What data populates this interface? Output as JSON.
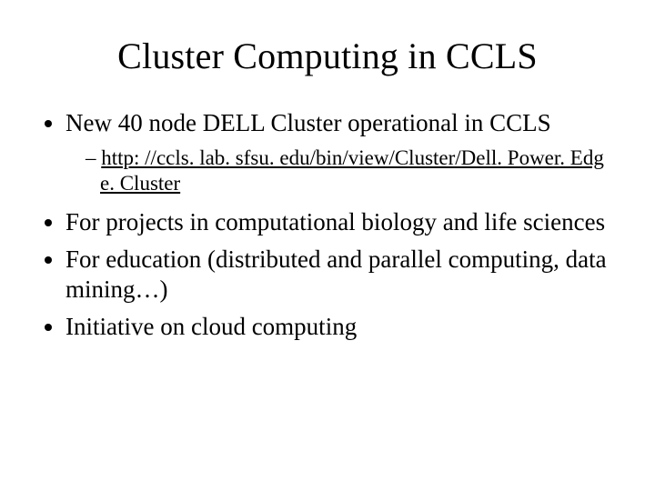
{
  "title": "Cluster Computing in CCLS",
  "bullets": {
    "b1": "New 40 node DELL Cluster operational in CCLS",
    "b1_sub": "http: //ccls. lab. sfsu. edu/bin/view/Cluster/Dell. Power. Edg e. Cluster",
    "b2": "For projects in computational biology and life sciences",
    "b3": "For education (distributed and parallel computing, data mining…)",
    "b4": "Initiative on cloud computing"
  },
  "colors": {
    "background": "#ffffff",
    "text": "#000000",
    "link": "#000000"
  },
  "typography": {
    "family": "Times New Roman",
    "title_size_pt": 40,
    "body_size_pt": 27,
    "sub_size_pt": 23
  }
}
